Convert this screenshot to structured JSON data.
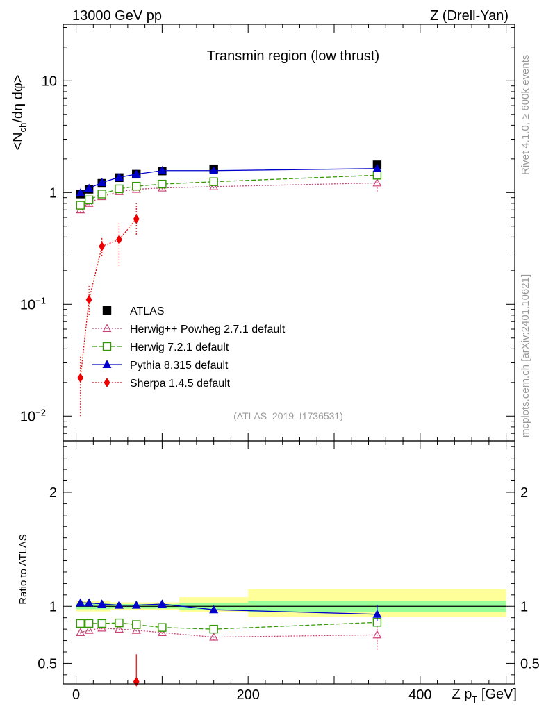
{
  "header": {
    "left": "13000 GeV pp",
    "right": "Z (Drell-Yan)"
  },
  "side_labels": {
    "rivet": "Rivet 4.1.0, ≥ 600k events",
    "mcplots": "mcplots.cern.ch [arXiv:2401.10621]"
  },
  "chart_data": [
    {
      "type": "scatter",
      "panel": "main",
      "title": "Transmin region (low thrust)",
      "watermark": "(ATLAS_2019_I1736531)",
      "ylabel": "<N_ch/dη dφ>",
      "yscale": "log",
      "ylim": [
        0.006,
        32
      ],
      "xlim": [
        -15,
        510
      ],
      "y_ticks": [
        {
          "value": 0.01,
          "base": "10",
          "exp": "−2"
        },
        {
          "value": 0.1,
          "base": "10",
          "exp": "−1"
        },
        {
          "value": 1,
          "base": "1",
          "exp": ""
        },
        {
          "value": 10,
          "base": "10",
          "exp": ""
        }
      ],
      "series": [
        {
          "name": "ATLAS",
          "style": "data",
          "color": "#000000",
          "marker": "square-filled",
          "line": "none",
          "x": [
            5,
            15,
            30,
            50,
            70,
            100,
            160,
            350
          ],
          "y": [
            0.97,
            1.07,
            1.21,
            1.36,
            1.46,
            1.56,
            1.63,
            1.77
          ]
        },
        {
          "name": "Herwig++ Powheg 2.7.1 default",
          "color": "#cc4477",
          "marker": "triangle-open",
          "line": "dotted",
          "x": [
            5,
            15,
            30,
            50,
            70,
            100,
            160,
            350
          ],
          "y": [
            0.7,
            0.8,
            0.92,
            1.02,
            1.07,
            1.1,
            1.13,
            1.22
          ],
          "err_lo": [
            0.66,
            0.77,
            0.89,
            0.99,
            1.04,
            1.07,
            1.09,
            1.02
          ],
          "err_hi": [
            0.74,
            0.83,
            0.95,
            1.05,
            1.1,
            1.13,
            1.18,
            1.4
          ]
        },
        {
          "name": "Herwig 7.2.1 default",
          "color": "#339900",
          "marker": "square-open",
          "line": "dashed",
          "x": [
            5,
            15,
            30,
            50,
            70,
            100,
            160,
            350
          ],
          "y": [
            0.77,
            0.86,
            0.97,
            1.08,
            1.14,
            1.19,
            1.25,
            1.43
          ],
          "err_lo": [
            0.75,
            0.84,
            0.95,
            1.06,
            1.12,
            1.17,
            1.22,
            1.37
          ],
          "err_hi": [
            0.79,
            0.88,
            0.99,
            1.1,
            1.16,
            1.21,
            1.28,
            1.49
          ]
        },
        {
          "name": "Pythia 8.315 default",
          "color": "#0000cc",
          "marker": "triangle-filled",
          "line": "solid",
          "x": [
            5,
            15,
            30,
            50,
            70,
            100,
            160,
            350
          ],
          "y": [
            0.99,
            1.09,
            1.23,
            1.37,
            1.46,
            1.57,
            1.57,
            1.64
          ],
          "err_lo": [
            0.97,
            1.07,
            1.21,
            1.35,
            1.44,
            1.55,
            1.54,
            1.55
          ],
          "err_hi": [
            1.01,
            1.11,
            1.25,
            1.39,
            1.48,
            1.59,
            1.6,
            1.73
          ]
        },
        {
          "name": "Sherpa 1.4.5 default",
          "color": "#ee0000",
          "marker": "diamond-filled",
          "line": "dotted",
          "x": [
            5,
            15,
            30,
            50,
            70
          ],
          "y": [
            0.022,
            0.11,
            0.33,
            0.38,
            0.58
          ],
          "err_lo": [
            0.01,
            0.08,
            0.27,
            0.22,
            0.42
          ],
          "err_hi": [
            0.034,
            0.15,
            0.4,
            0.55,
            0.8
          ]
        }
      ]
    },
    {
      "type": "scatter",
      "panel": "ratio",
      "ylabel": "Ratio to ATLAS",
      "xlabel_main": "Z p",
      "xlabel_sub": "T",
      "xlabel_unit": " [GeV]",
      "xlim": [
        -15,
        510
      ],
      "ylim": [
        0.32,
        2.45
      ],
      "x_ticks": [
        0,
        200,
        400
      ],
      "y_ticks": [
        0.5,
        1,
        2
      ],
      "bands": [
        {
          "x0": 0,
          "x1": 40,
          "stat_lo": 0.975,
          "stat_hi": 1.025,
          "tot_lo": 0.955,
          "tot_hi": 1.045
        },
        {
          "x0": 40,
          "x1": 120,
          "stat_lo": 0.98,
          "stat_hi": 1.02,
          "tot_lo": 0.965,
          "tot_hi": 1.035
        },
        {
          "x0": 120,
          "x1": 200,
          "stat_lo": 0.97,
          "stat_hi": 1.03,
          "tot_lo": 0.95,
          "tot_hi": 1.08
        },
        {
          "x0": 200,
          "x1": 500,
          "stat_lo": 0.95,
          "stat_hi": 1.05,
          "tot_lo": 0.905,
          "tot_hi": 1.15
        }
      ],
      "series": [
        {
          "name": "Herwig++ Powheg 2.7.1 default",
          "color": "#cc4477",
          "marker": "triangle-open",
          "line": "dotted",
          "x": [
            5,
            15,
            30,
            50,
            70,
            100,
            160,
            350
          ],
          "y": [
            0.77,
            0.79,
            0.81,
            0.8,
            0.79,
            0.77,
            0.73,
            0.75
          ],
          "err_lo": [
            0.76,
            0.78,
            0.8,
            0.79,
            0.78,
            0.76,
            0.7,
            0.62
          ],
          "err_hi": [
            0.78,
            0.8,
            0.82,
            0.81,
            0.8,
            0.78,
            0.76,
            0.85
          ]
        },
        {
          "name": "Herwig 7.2.1 default",
          "color": "#339900",
          "marker": "square-open",
          "line": "dashed",
          "x": [
            5,
            15,
            30,
            50,
            70,
            100,
            160,
            350
          ],
          "y": [
            0.85,
            0.85,
            0.85,
            0.855,
            0.84,
            0.815,
            0.8,
            0.86
          ],
          "err_lo": [
            0.84,
            0.84,
            0.84,
            0.845,
            0.83,
            0.805,
            0.785,
            0.84
          ],
          "err_hi": [
            0.86,
            0.86,
            0.86,
            0.865,
            0.85,
            0.825,
            0.815,
            0.88
          ]
        },
        {
          "name": "Pythia 8.315 default",
          "color": "#0000cc",
          "marker": "triangle-filled",
          "line": "solid",
          "x": [
            5,
            15,
            30,
            50,
            70,
            100,
            160,
            350
          ],
          "y": [
            1.03,
            1.03,
            1.02,
            1.01,
            1.01,
            1.02,
            0.97,
            0.93
          ],
          "err_lo": [
            1.02,
            1.02,
            1.01,
            1.0,
            1.0,
            1.01,
            0.95,
            0.87
          ],
          "err_hi": [
            1.04,
            1.04,
            1.03,
            1.02,
            1.02,
            1.03,
            0.99,
            1.01
          ]
        },
        {
          "name": "Sherpa 1.4.5 default",
          "color": "#ee0000",
          "marker": "diamond-filled",
          "line": "none",
          "x": [
            70
          ],
          "y": [
            0.34
          ],
          "err_lo": [
            0.32
          ],
          "err_hi": [
            0.58
          ]
        }
      ]
    }
  ]
}
